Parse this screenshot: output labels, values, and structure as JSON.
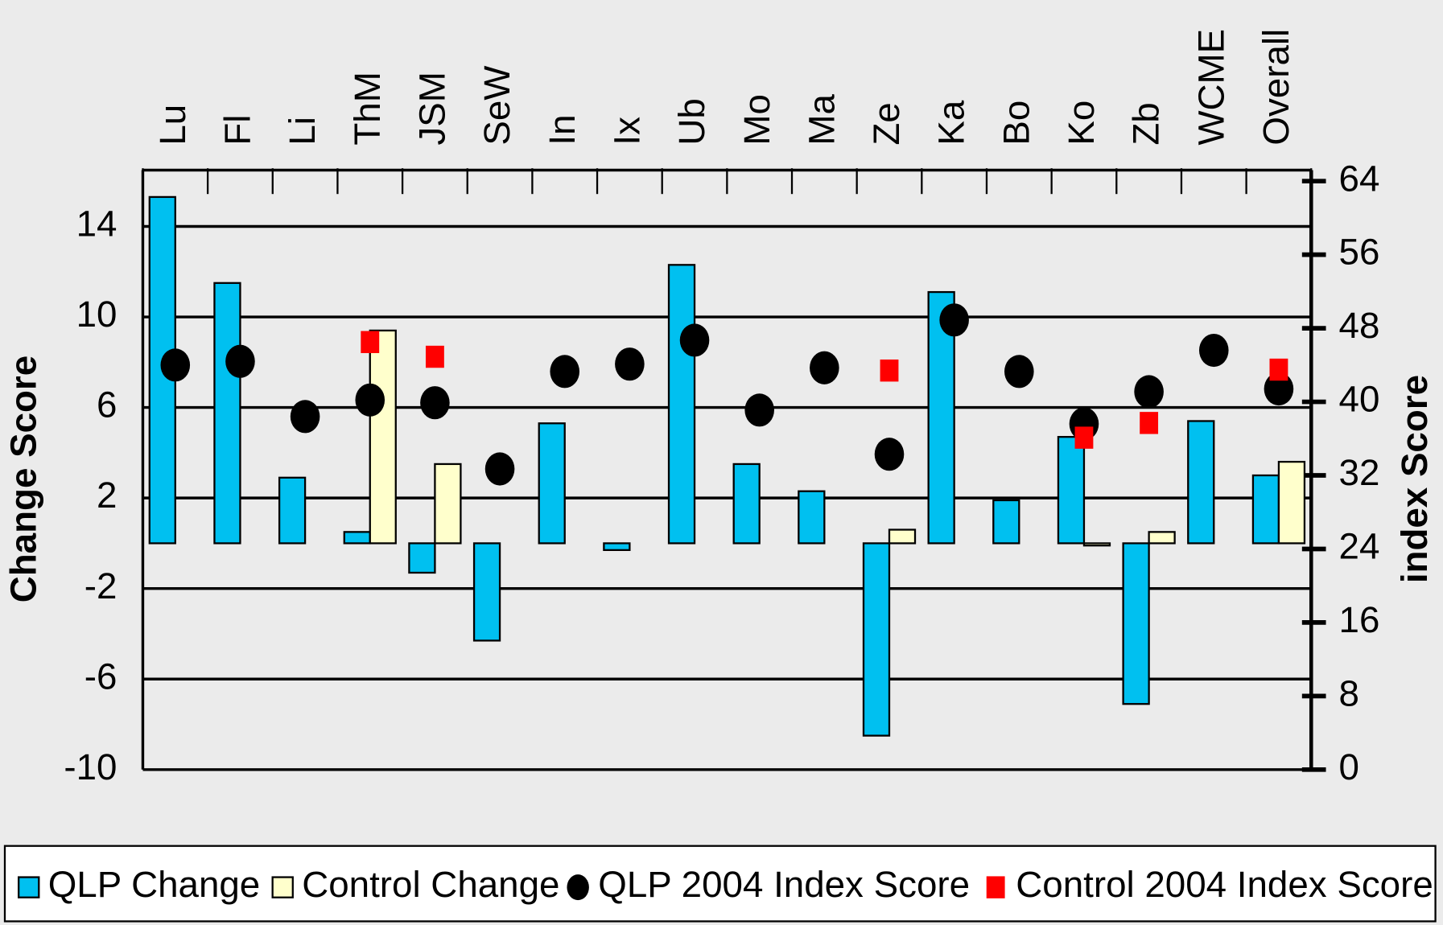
{
  "chart_data": {
    "type": "bar",
    "categories": [
      "Lu",
      "Fl",
      "Li",
      "ThM",
      "JSM",
      "SeW",
      "In",
      "Ix",
      "Ub",
      "Mo",
      "Ma",
      "Ze",
      "Ka",
      "Bo",
      "Ko",
      "Zb",
      "WCME",
      "Overall"
    ],
    "y_label": "Change Score",
    "y2_label": "index Score",
    "ylim": [
      -10,
      16
    ],
    "yticks": [
      -10,
      -6,
      -2,
      2,
      6,
      10,
      14
    ],
    "y2lim": [
      0,
      64
    ],
    "y2ticks": [
      0,
      8,
      16,
      24,
      32,
      40,
      48,
      56,
      64
    ],
    "grid": true,
    "legend": "bottom",
    "series": [
      {
        "name": "QLP Change",
        "type": "bar",
        "color": "#00c0f0",
        "values": [
          15.3,
          11.5,
          2.9,
          0.5,
          -1.3,
          -4.3,
          5.3,
          -0.3,
          12.3,
          3.5,
          2.3,
          -8.5,
          11.1,
          1.9,
          4.7,
          -7.1,
          5.4,
          3.0
        ]
      },
      {
        "name": "Control Change",
        "type": "bar",
        "color": "#ffffcc",
        "values": [
          null,
          null,
          null,
          9.4,
          3.5,
          null,
          null,
          null,
          null,
          null,
          null,
          0.6,
          null,
          null,
          -0.1,
          0.5,
          null,
          3.6
        ]
      },
      {
        "name": "QLP 2004 Index Score",
        "type": "scatter",
        "axis": "y2",
        "color": "#000000",
        "marker": "circle",
        "values": [
          44,
          44.4,
          38.4,
          40.2,
          39.9,
          32.7,
          43.3,
          44.1,
          46.7,
          39.1,
          43.7,
          34.3,
          48.9,
          43.3,
          37.6,
          41.1,
          45.6,
          41.4
        ]
      },
      {
        "name": "Control 2004 Index Score",
        "type": "scatter",
        "axis": "y2",
        "color": "#ff0000",
        "marker": "square",
        "values": [
          null,
          null,
          null,
          46.5,
          44.9,
          null,
          null,
          null,
          null,
          null,
          null,
          43.4,
          null,
          null,
          36.1,
          37.7,
          null,
          43.5
        ]
      }
    ]
  }
}
